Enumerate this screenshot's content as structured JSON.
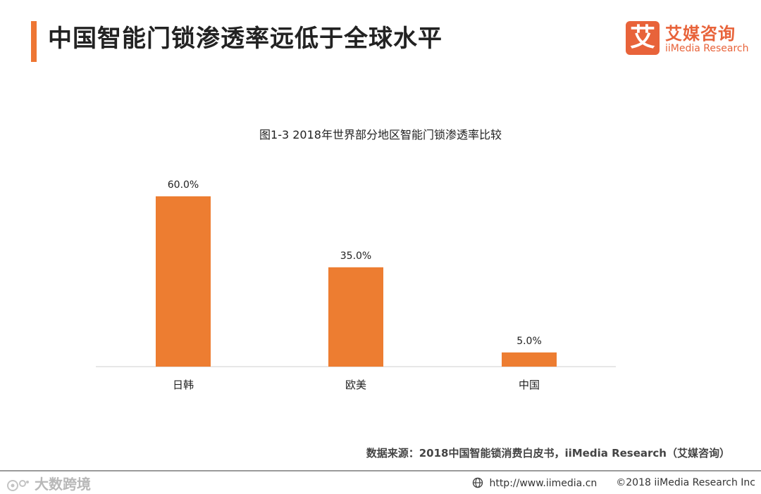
{
  "header": {
    "title": "中国智能门锁渗透率远低于全球水平"
  },
  "logo": {
    "badge_char": "艾",
    "name_cn": "艾媒咨询",
    "name_en": "iiMedia Research"
  },
  "chart_data": {
    "type": "bar",
    "title": "图1-3 2018年世界部分地区智能门锁渗透率比较",
    "categories": [
      "日韩",
      "欧美",
      "中国"
    ],
    "values": [
      60.0,
      35.0,
      5.0
    ],
    "value_labels": [
      "60.0%",
      "35.0%",
      "5.0%"
    ],
    "xlabel": "",
    "ylabel": "",
    "ylim": [
      0,
      60
    ],
    "grid": false,
    "bar_color": "#ed7d31"
  },
  "footer": {
    "source": "数据来源：2018中国智能锁消费白皮书，iiMedia Research（艾媒咨询）",
    "watermark": "大数跨境",
    "url": "http://www.iimedia.cn",
    "copyright": "©2018  iiMedia Research Inc"
  },
  "colors": {
    "accent": "#ee7633",
    "brand": "#e8633a"
  }
}
